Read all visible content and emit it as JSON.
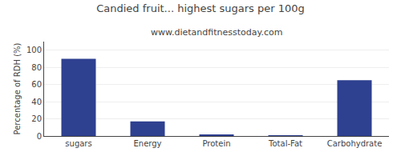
{
  "chart_data": {
    "type": "bar",
    "title": "Candied fruit... highest sugars per 100g",
    "subtitle": "www.dietandfitnesstoday.com",
    "ylabel": "Percentage of RDH (%)",
    "categories": [
      "sugars",
      "Energy",
      "Protein",
      "Total-Fat",
      "Carbohydrate"
    ],
    "values": [
      90,
      17,
      1.2,
      0.3,
      65
    ],
    "color": "#2e4090",
    "ylim": [
      0,
      110
    ],
    "yticks": [
      0,
      20,
      40,
      60,
      80,
      100
    ],
    "grid": true
  }
}
